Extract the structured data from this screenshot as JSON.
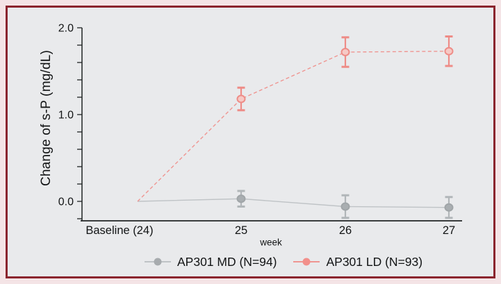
{
  "frame": {
    "border_color": "#8b252e",
    "outer_background": "#f4e4e6",
    "inner_background": "#e9eaec",
    "axis_color": "#212425",
    "text_color": "#121415"
  },
  "chart_data": {
    "type": "line",
    "categories": [
      "Baseline (24)",
      "25",
      "26",
      "27"
    ],
    "xlabel": "week",
    "ylabel": "Change of s-P (mg/dL)",
    "ylim": [
      -0.25,
      2.0
    ],
    "yticks": [
      2.0,
      1.0,
      0.0
    ],
    "minor_tick_step": 0.2,
    "grid": false,
    "legend_position": "bottom",
    "series": [
      {
        "name": "AP301 MD (N=94)",
        "color": "#bfc3c6",
        "marker_fill": "#a9aeb1",
        "marker_stroke": "#a0a5a8",
        "error_color": "#b1b6b9",
        "legend_dot": "#a7abae",
        "style": "solid",
        "values": [
          0,
          0.03,
          -0.06,
          -0.07
        ],
        "errors": [
          0,
          0.09,
          0.13,
          0.12
        ]
      },
      {
        "name": "AP301 LD (N=93)",
        "color": "#ef9591",
        "marker_fill": "#f6c9c5",
        "marker_stroke": "#ee8c87",
        "error_color": "#ee8c87",
        "legend_dot": "#f2908b",
        "style": "dashed",
        "values": [
          0,
          1.18,
          1.72,
          1.73
        ],
        "errors": [
          0,
          0.13,
          0.17,
          0.17
        ]
      }
    ]
  }
}
